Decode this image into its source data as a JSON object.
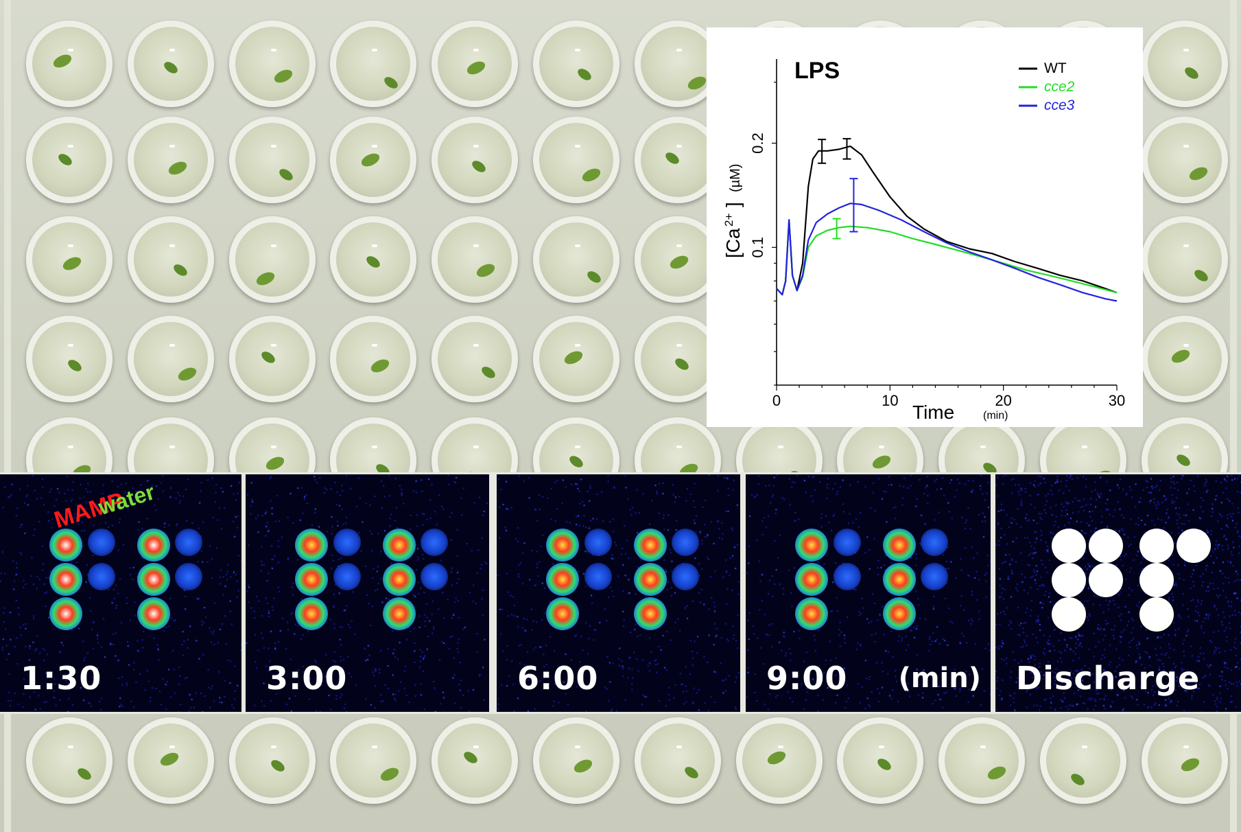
{
  "chart_data": {
    "type": "line",
    "title": "LPS",
    "xlabel": "Time",
    "xlabel_unit": "(min)",
    "ylabel_main": "[Ca",
    "ylabel_sup": "2+",
    "ylabel_close": "]",
    "ylabel_unit": "(µM)",
    "xlim": [
      0,
      30
    ],
    "ylim": [
      0.04,
      0.35
    ],
    "y_scale": "log",
    "x_ticks": [
      "0",
      "10",
      "20",
      "30"
    ],
    "y_ticks": [
      "0.1",
      "0.2"
    ],
    "legend_position": "top-right",
    "series": [
      {
        "name": "WT",
        "color": "#000000",
        "italic": false,
        "x": [
          0,
          0.5,
          0.8,
          1.1,
          1.4,
          1.8,
          2.3,
          2.8,
          3.2,
          3.7,
          4.5,
          5.5,
          6.5,
          7.5,
          8.5,
          10,
          11.5,
          13,
          15,
          17,
          19,
          21,
          23,
          25,
          27,
          29,
          30
        ],
        "y": [
          0.076,
          0.073,
          0.08,
          0.12,
          0.083,
          0.075,
          0.09,
          0.15,
          0.18,
          0.19,
          0.19,
          0.192,
          0.196,
          0.185,
          0.165,
          0.14,
          0.123,
          0.113,
          0.104,
          0.099,
          0.096,
          0.091,
          0.087,
          0.083,
          0.08,
          0.076,
          0.074
        ],
        "error_bars": [
          {
            "x": 4,
            "y": 0.19,
            "lo": 0.175,
            "hi": 0.205
          },
          {
            "x": 6.2,
            "y": 0.195,
            "lo": 0.18,
            "hi": 0.206
          }
        ]
      },
      {
        "name": "cce2",
        "color": "#22dd22",
        "italic": true,
        "x": [
          0,
          0.5,
          0.8,
          1.1,
          1.4,
          1.8,
          2.3,
          2.8,
          3.5,
          4.5,
          5.5,
          6.5,
          8,
          10,
          12,
          14,
          16,
          18,
          20,
          22,
          24,
          26,
          28,
          30
        ],
        "y": [
          0.076,
          0.073,
          0.08,
          0.12,
          0.083,
          0.075,
          0.082,
          0.1,
          0.108,
          0.112,
          0.114,
          0.115,
          0.114,
          0.111,
          0.106,
          0.102,
          0.098,
          0.094,
          0.09,
          0.086,
          0.083,
          0.08,
          0.077,
          0.074
        ],
        "error_bars": [
          {
            "x": 5.3,
            "y": 0.113,
            "lo": 0.106,
            "hi": 0.121
          }
        ]
      },
      {
        "name": "cce3",
        "color": "#2222dd",
        "italic": true,
        "x": [
          0,
          0.5,
          0.8,
          1.1,
          1.4,
          1.8,
          2.3,
          2.8,
          3.5,
          4.5,
          5.5,
          6.5,
          7.5,
          9,
          11,
          13,
          15,
          17,
          19,
          21,
          23,
          25,
          27,
          29,
          30
        ],
        "y": [
          0.076,
          0.073,
          0.08,
          0.12,
          0.083,
          0.075,
          0.083,
          0.105,
          0.118,
          0.125,
          0.13,
          0.134,
          0.133,
          0.128,
          0.12,
          0.111,
          0.103,
          0.097,
          0.092,
          0.087,
          0.082,
          0.078,
          0.074,
          0.071,
          0.07
        ],
        "error_bars": [
          {
            "x": 6.8,
            "y": 0.134,
            "lo": 0.111,
            "hi": 0.158
          }
        ]
      }
    ]
  },
  "imaging": {
    "label_mamp": "MAMP",
    "label_water": "water",
    "unit": "(min)",
    "frames": [
      {
        "label": "1:30"
      },
      {
        "label": "3:00"
      },
      {
        "label": "6:00"
      },
      {
        "label": "9:00"
      },
      {
        "label": "Discharge"
      }
    ]
  }
}
